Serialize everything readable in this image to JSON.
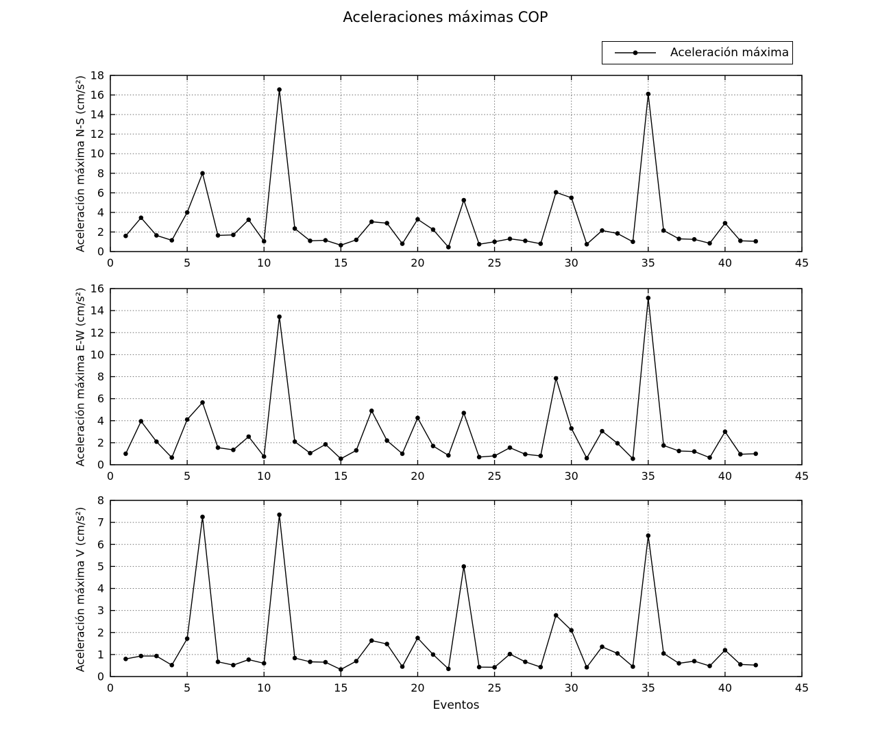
{
  "title": "Aceleraciones máximas COP",
  "legend": {
    "label": "Aceleración máxima"
  },
  "colors": {
    "line": "#000000",
    "grid": "#6f6f6f",
    "background": "#ffffff"
  },
  "chart_data": {
    "type": "line",
    "title": "Aceleraciones máximas COP",
    "xlabel": "Eventos",
    "legend_label": "Aceleración máxima",
    "legend_position": "upper right above axes",
    "grid": true,
    "marker": "point",
    "x": [
      1,
      2,
      3,
      4,
      5,
      6,
      7,
      8,
      9,
      10,
      11,
      12,
      13,
      14,
      15,
      16,
      17,
      18,
      19,
      20,
      21,
      22,
      23,
      24,
      25,
      26,
      27,
      28,
      29,
      30,
      31,
      32,
      33,
      34,
      35,
      36,
      37,
      38,
      39,
      40,
      41,
      42
    ],
    "xlim": [
      0,
      45
    ],
    "xticks": [
      0,
      5,
      10,
      15,
      20,
      25,
      30,
      35,
      40,
      45
    ],
    "subplots": [
      {
        "id": "ns",
        "ylabel": "Aceleración máxima N-S (cm/s²)",
        "ylim": [
          0,
          18
        ],
        "yticks": [
          0,
          2,
          4,
          6,
          8,
          10,
          12,
          14,
          16,
          18
        ],
        "values": [
          1.6,
          3.45,
          1.65,
          1.15,
          4.0,
          8.0,
          1.65,
          1.7,
          3.25,
          1.05,
          16.55,
          2.35,
          1.1,
          1.15,
          0.65,
          1.2,
          3.05,
          2.9,
          0.8,
          3.3,
          2.25,
          0.45,
          5.25,
          0.75,
          1.0,
          1.3,
          1.1,
          0.8,
          6.05,
          5.5,
          0.75,
          2.15,
          1.85,
          1.0,
          16.1,
          2.15,
          1.3,
          1.25,
          0.85,
          2.9,
          1.1,
          1.05
        ]
      },
      {
        "id": "ew",
        "ylabel": "Aceleración máxima E-W (cm/s²)",
        "ylim": [
          0,
          16
        ],
        "yticks": [
          0,
          2,
          4,
          6,
          8,
          10,
          12,
          14,
          16
        ],
        "values": [
          1.0,
          3.95,
          2.1,
          0.65,
          4.1,
          5.65,
          1.55,
          1.35,
          2.55,
          0.75,
          13.45,
          2.1,
          1.05,
          1.85,
          0.55,
          1.3,
          4.9,
          2.2,
          1.0,
          4.25,
          1.7,
          0.85,
          4.7,
          0.7,
          0.8,
          1.55,
          0.95,
          0.8,
          7.85,
          3.3,
          0.6,
          3.05,
          1.95,
          0.55,
          15.15,
          1.75,
          1.25,
          1.2,
          0.65,
          3.0,
          0.95,
          1.0
        ]
      },
      {
        "id": "v",
        "ylabel": "Aceleración máxima V (cm/s²)",
        "ylim": [
          0,
          8
        ],
        "yticks": [
          0,
          1,
          2,
          3,
          4,
          5,
          6,
          7,
          8
        ],
        "values": [
          0.8,
          0.93,
          0.93,
          0.52,
          1.72,
          7.25,
          0.67,
          0.52,
          0.77,
          0.6,
          7.35,
          0.84,
          0.67,
          0.65,
          0.32,
          0.7,
          1.63,
          1.48,
          0.45,
          1.75,
          1.0,
          0.35,
          5.0,
          0.43,
          0.42,
          1.02,
          0.67,
          0.43,
          2.78,
          2.1,
          0.42,
          1.35,
          1.05,
          0.45,
          6.4,
          1.05,
          0.6,
          0.7,
          0.48,
          1.2,
          0.55,
          0.52
        ]
      }
    ]
  }
}
